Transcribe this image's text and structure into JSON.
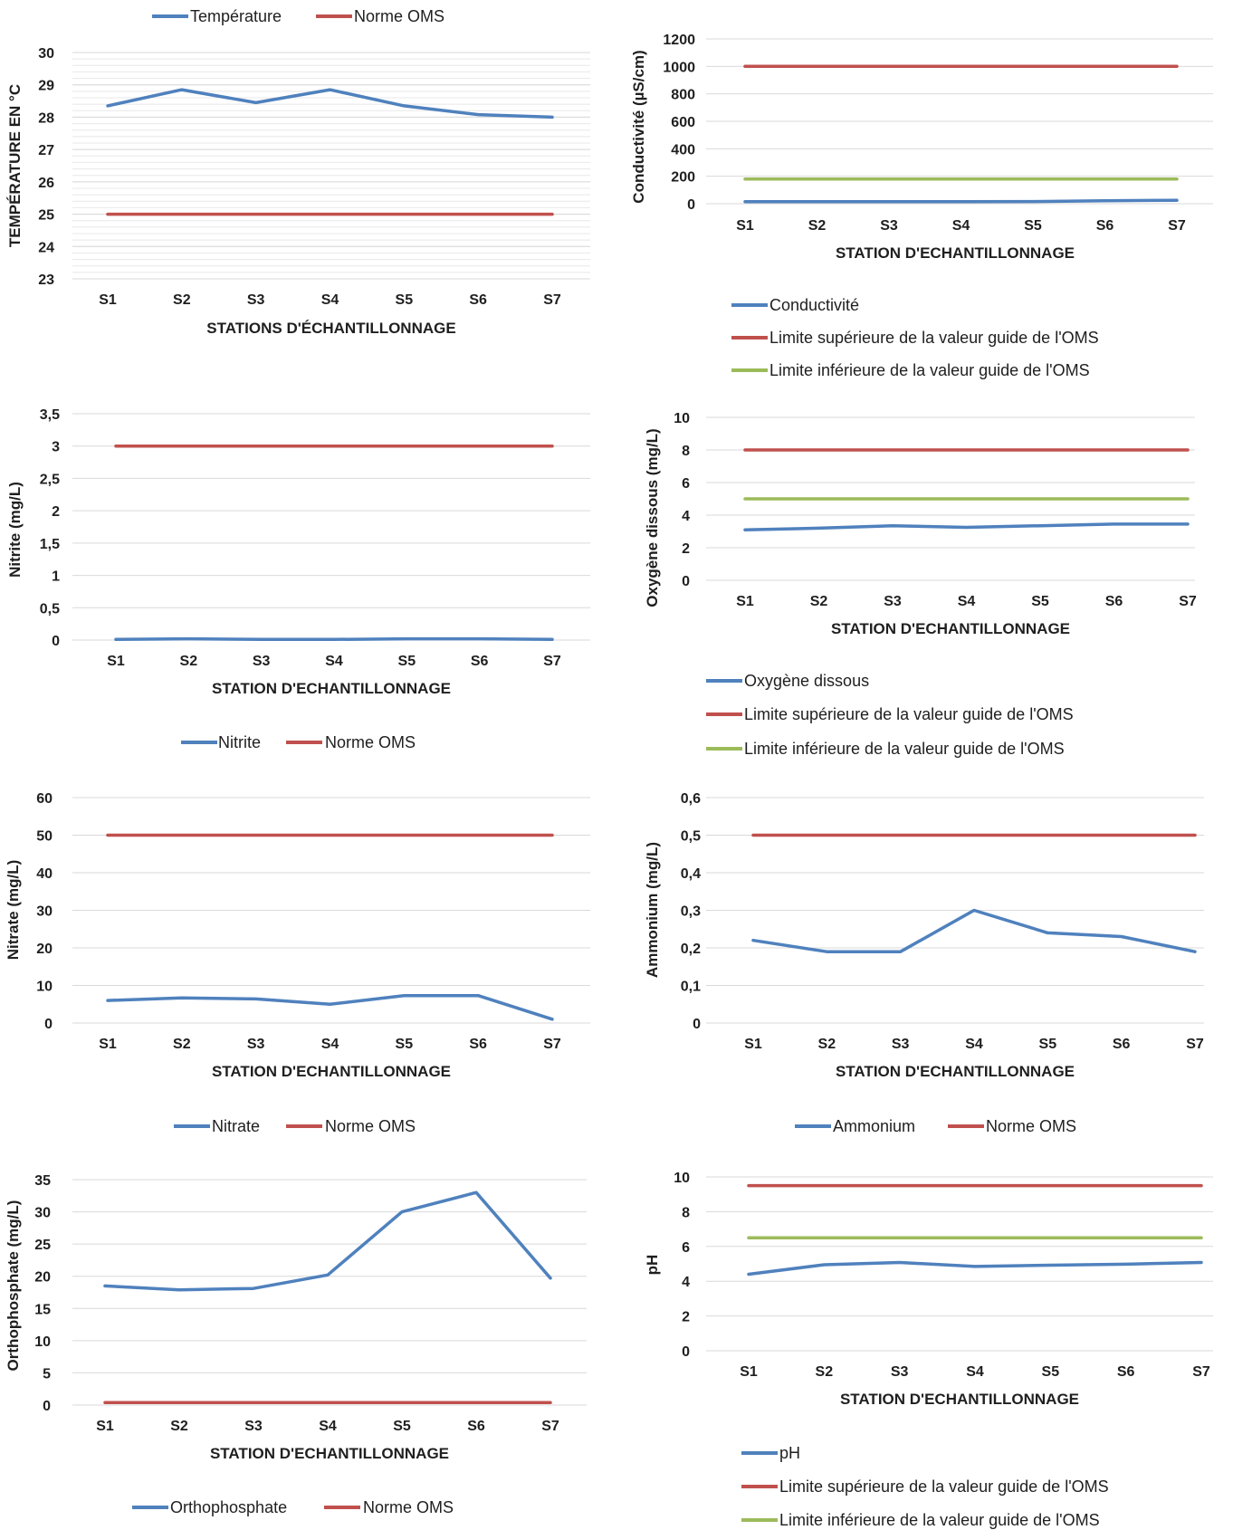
{
  "colors": {
    "measure": "#4f81bd",
    "upper": "#c0504d",
    "lower": "#9bbb59"
  },
  "chart_data": [
    {
      "id": "temperature",
      "type": "line",
      "categories": [
        "S1",
        "S2",
        "S3",
        "S4",
        "S5",
        "S6",
        "S7"
      ],
      "series": [
        {
          "name": "Température",
          "values": [
            28.35,
            28.85,
            28.45,
            28.85,
            28.35,
            28.08,
            28.0
          ],
          "color": "#4f81bd"
        },
        {
          "name": "Norme OMS",
          "values": [
            25,
            25,
            25,
            25,
            25,
            25,
            25
          ],
          "color": "#c0504d"
        }
      ],
      "xlabel": "STATIONS D'ÉCHANTILLONNAGE",
      "ylabel": "TEMPÉRATURE EN °C",
      "ylim": [
        23,
        30
      ],
      "yticks": [
        23,
        24,
        25,
        26,
        27,
        28,
        29,
        30
      ],
      "minor_grid": true,
      "legend": "top"
    },
    {
      "id": "conductivity",
      "type": "line",
      "categories": [
        "S1",
        "S2",
        "S3",
        "S4",
        "S5",
        "S6",
        "S7"
      ],
      "series": [
        {
          "name": "Conductivité",
          "values": [
            15,
            15,
            15,
            15,
            16,
            22,
            25
          ],
          "color": "#4f81bd"
        },
        {
          "name": "Limite supérieure de la valeur guide de l'OMS",
          "values": [
            1000,
            1000,
            1000,
            1000,
            1000,
            1000,
            1000
          ],
          "color": "#c0504d"
        },
        {
          "name": "Limite inférieure de la valeur guide de l'OMS",
          "values": [
            180,
            180,
            180,
            180,
            180,
            180,
            180
          ],
          "color": "#9bbb59"
        }
      ],
      "xlabel": "STATION D'ECHANTILLONNAGE",
      "ylabel": "Conductivité (µS/cm)",
      "ylim": [
        0,
        1200
      ],
      "yticks": [
        0,
        200,
        400,
        600,
        800,
        1000,
        1200
      ],
      "legend": "bottom"
    },
    {
      "id": "nitrite",
      "type": "line",
      "categories": [
        "S1",
        "S2",
        "S3",
        "S4",
        "S5",
        "S6",
        "S7"
      ],
      "series": [
        {
          "name": "Nitrite",
          "values": [
            0.01,
            0.02,
            0.01,
            0.01,
            0.02,
            0.02,
            0.01
          ],
          "color": "#4f81bd"
        },
        {
          "name": "Norme OMS",
          "values": [
            3,
            3,
            3,
            3,
            3,
            3,
            3
          ],
          "color": "#c0504d"
        }
      ],
      "xlabel": "STATION D'ECHANTILLONNAGE",
      "ylabel": "Nitrite (mg/L)",
      "ylim": [
        0,
        3.5
      ],
      "yticks": [
        0,
        0.5,
        1,
        1.5,
        2,
        2.5,
        3,
        3.5
      ],
      "tick_labels": [
        "0",
        "0,5",
        "1",
        "1,5",
        "2",
        "2,5",
        "3",
        "3,5"
      ],
      "legend": "bottom"
    },
    {
      "id": "oxygen",
      "type": "line",
      "categories": [
        "S1",
        "S2",
        "S3",
        "S4",
        "S5",
        "S6",
        "S7"
      ],
      "series": [
        {
          "name": "Oxygène dissous",
          "values": [
            3.1,
            3.2,
            3.35,
            3.25,
            3.35,
            3.45,
            3.45
          ],
          "color": "#4f81bd"
        },
        {
          "name": "Limite supérieure de la valeur guide de l'OMS",
          "values": [
            8,
            8,
            8,
            8,
            8,
            8,
            8
          ],
          "color": "#c0504d"
        },
        {
          "name": "Limite inférieure de la valeur guide de l'OMS",
          "values": [
            5,
            5,
            5,
            5,
            5,
            5,
            5
          ],
          "color": "#9bbb59"
        }
      ],
      "xlabel": "STATION D'ECHANTILLONNAGE",
      "ylabel": "Oxygène dissous (mg/L)",
      "ylim": [
        0,
        10
      ],
      "yticks": [
        0,
        2,
        4,
        6,
        8,
        10
      ],
      "legend": "bottom"
    },
    {
      "id": "nitrate",
      "type": "line",
      "categories": [
        "S1",
        "S2",
        "S3",
        "S4",
        "S5",
        "S6",
        "S7"
      ],
      "series": [
        {
          "name": "Nitrate",
          "values": [
            6,
            6.7,
            6.4,
            5,
            7.3,
            7.3,
            1
          ],
          "color": "#4f81bd"
        },
        {
          "name": "Norme OMS",
          "values": [
            50,
            50,
            50,
            50,
            50,
            50,
            50
          ],
          "color": "#c0504d"
        }
      ],
      "xlabel": "STATION D'ECHANTILLONNAGE",
      "ylabel": "Nitrate (mg/L)",
      "ylim": [
        0,
        60
      ],
      "yticks": [
        0,
        10,
        20,
        30,
        40,
        50,
        60
      ],
      "legend": "bottom"
    },
    {
      "id": "ammonium",
      "type": "line",
      "categories": [
        "S1",
        "S2",
        "S3",
        "S4",
        "S5",
        "S6",
        "S7"
      ],
      "series": [
        {
          "name": "Ammonium",
          "values": [
            0.22,
            0.19,
            0.19,
            0.3,
            0.24,
            0.23,
            0.19
          ],
          "color": "#4f81bd"
        },
        {
          "name": "Norme OMS",
          "values": [
            0.5,
            0.5,
            0.5,
            0.5,
            0.5,
            0.5,
            0.5
          ],
          "color": "#c0504d"
        }
      ],
      "xlabel": "STATION D'ECHANTILLONNAGE",
      "ylabel": "Ammonium (mg/L)",
      "ylim": [
        0,
        0.6
      ],
      "yticks": [
        0,
        0.1,
        0.2,
        0.3,
        0.4,
        0.5,
        0.6
      ],
      "tick_labels": [
        "0",
        "0,1",
        "0,2",
        "0,3",
        "0,4",
        "0,5",
        "0,6"
      ],
      "legend": "bottom"
    },
    {
      "id": "orthophosphate",
      "type": "line",
      "categories": [
        "S1",
        "S2",
        "S3",
        "S4",
        "S5",
        "S6",
        "S7"
      ],
      "series": [
        {
          "name": "Orthophosphate",
          "values": [
            18.5,
            17.9,
            18.1,
            20.2,
            30,
            33,
            19.7
          ],
          "color": "#4f81bd"
        },
        {
          "name": "Norme OMS",
          "values": [
            0.4,
            0.4,
            0.4,
            0.4,
            0.4,
            0.4,
            0.4
          ],
          "color": "#c0504d"
        }
      ],
      "xlabel": "STATION D'ECHANTILLONNAGE",
      "ylabel": "Orthophosphate (mg/L)",
      "ylim": [
        0,
        35
      ],
      "yticks": [
        0,
        5,
        10,
        15,
        20,
        25,
        30,
        35
      ],
      "legend": "bottom"
    },
    {
      "id": "ph",
      "type": "line",
      "categories": [
        "S1",
        "S2",
        "S3",
        "S4",
        "S5",
        "S6",
        "S7"
      ],
      "series": [
        {
          "name": "pH",
          "values": [
            4.4,
            4.95,
            5.08,
            4.85,
            4.92,
            4.98,
            5.08
          ],
          "color": "#4f81bd"
        },
        {
          "name": "Limite supérieure de la valeur guide de l'OMS",
          "values": [
            9.5,
            9.5,
            9.5,
            9.5,
            9.5,
            9.5,
            9.5
          ],
          "color": "#c0504d"
        },
        {
          "name": "Limite inférieure de la valeur guide de l'OMS",
          "values": [
            6.5,
            6.5,
            6.5,
            6.5,
            6.5,
            6.5,
            6.5
          ],
          "color": "#9bbb59"
        }
      ],
      "xlabel": "STATION D'ECHANTILLONNAGE",
      "ylabel": "pH",
      "ylim": [
        0,
        10
      ],
      "yticks": [
        0,
        2,
        4,
        6,
        8,
        10
      ],
      "legend": "bottom"
    }
  ]
}
